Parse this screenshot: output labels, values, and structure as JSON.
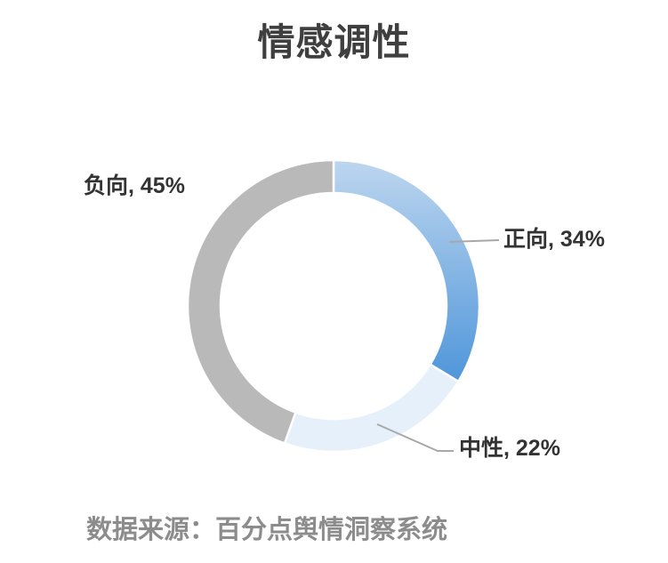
{
  "chart_data": {
    "type": "pie",
    "variant": "donut",
    "title": "情感调性",
    "legend_position": "none",
    "labels_outside": true,
    "start_angle": "top",
    "direction": "clockwise",
    "series": [
      {
        "name": "正向",
        "value": 34,
        "unit": "%",
        "label": "正向, 34%",
        "colors": [
          "#bdd6ef",
          "#4f96da"
        ]
      },
      {
        "name": "中性",
        "value": 22,
        "unit": "%",
        "label": "中性, 22%",
        "colors": [
          "#e5f0fa"
        ]
      },
      {
        "name": "负向",
        "value": 45,
        "unit": "%",
        "label": "负向, 45%",
        "colors": [
          "#b9b9b9"
        ]
      }
    ]
  },
  "footer": {
    "source_text": "数据来源：百分点舆情洞察系统"
  },
  "colors": {
    "background": "#ffffff",
    "title_text": "#3f3f3f",
    "label_text": "#333333",
    "source_text": "#8c8c8c",
    "leader_line": "#a8a8a8",
    "slice_separator": "#ffffff"
  }
}
